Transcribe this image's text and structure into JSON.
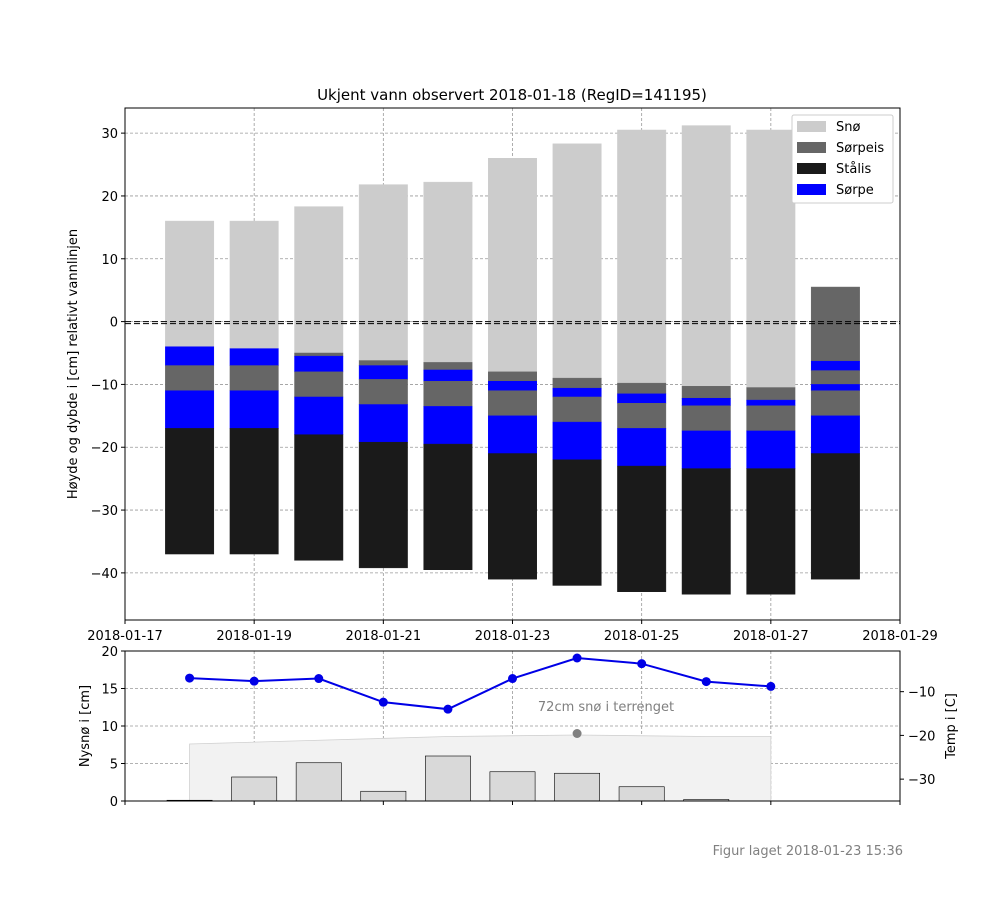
{
  "colors": {
    "sno": "#cccccc",
    "sorpeis": "#666666",
    "stalis": "#1a1a1a",
    "sorpe": "#0000ff",
    "temp_line": "#0000e6",
    "newsnow_bar": "#d9d9d9",
    "terrain_fill": "#f2f2f2",
    "grid": "#999999",
    "footer": "#808080"
  },
  "footer": "Figur laget 2018-01-23 15:36",
  "chart_data": [
    {
      "type": "bar",
      "stacked": true,
      "title": "Ukjent vann observert 2018-01-18 (RegID=141195)",
      "ylabel": "Høyde og dybde i [cm] relativt vannlinjen",
      "ylim": [
        -47.5,
        34
      ],
      "yticks": [
        30,
        20,
        10,
        0,
        -10,
        -20,
        -30,
        -40
      ],
      "xlim": [
        "2018-01-17",
        "2018-01-29"
      ],
      "xticks": [
        "2018-01-17",
        "2018-01-19",
        "2018-01-21",
        "2018-01-23",
        "2018-01-25",
        "2018-01-27",
        "2018-01-29"
      ],
      "grid": true,
      "legend_position": "top-right",
      "water_line": 0,
      "legend": [
        "Snø",
        "Sørpeis",
        "Stålis",
        "Sørpe"
      ],
      "columns": [
        {
          "date": "2018-01-18",
          "layers": [
            {
              "type": "sno",
              "top": 16,
              "bottom": -4
            },
            {
              "type": "sorpe",
              "top": -4,
              "bottom": -7
            },
            {
              "type": "sorpeis",
              "top": -7,
              "bottom": -11
            },
            {
              "type": "sorpe",
              "top": -11,
              "bottom": -17
            },
            {
              "type": "stalis",
              "top": -17,
              "bottom": -37
            }
          ]
        },
        {
          "date": "2018-01-19",
          "layers": [
            {
              "type": "sno",
              "top": 16,
              "bottom": -4.3
            },
            {
              "type": "sorpe",
              "top": -4.3,
              "bottom": -7
            },
            {
              "type": "sorpeis",
              "top": -7,
              "bottom": -11
            },
            {
              "type": "sorpe",
              "top": -11,
              "bottom": -17
            },
            {
              "type": "stalis",
              "top": -17,
              "bottom": -37
            }
          ]
        },
        {
          "date": "2018-01-20",
          "layers": [
            {
              "type": "sno",
              "top": 18.3,
              "bottom": -5
            },
            {
              "type": "sorpeis",
              "top": -5,
              "bottom": -5.5
            },
            {
              "type": "sorpe",
              "top": -5.5,
              "bottom": -8
            },
            {
              "type": "sorpeis",
              "top": -8,
              "bottom": -12
            },
            {
              "type": "sorpe",
              "top": -12,
              "bottom": -18
            },
            {
              "type": "stalis",
              "top": -18,
              "bottom": -38
            }
          ]
        },
        {
          "date": "2018-01-21",
          "layers": [
            {
              "type": "sno",
              "top": 21.8,
              "bottom": -6.2
            },
            {
              "type": "sorpeis",
              "top": -6.2,
              "bottom": -7
            },
            {
              "type": "sorpe",
              "top": -7,
              "bottom": -9.2
            },
            {
              "type": "sorpeis",
              "top": -9.2,
              "bottom": -13.2
            },
            {
              "type": "sorpe",
              "top": -13.2,
              "bottom": -19.2
            },
            {
              "type": "stalis",
              "top": -19.2,
              "bottom": -39.2
            }
          ]
        },
        {
          "date": "2018-01-22",
          "layers": [
            {
              "type": "sno",
              "top": 22.2,
              "bottom": -6.5
            },
            {
              "type": "sorpeis",
              "top": -6.5,
              "bottom": -7.7
            },
            {
              "type": "sorpe",
              "top": -7.7,
              "bottom": -9.5
            },
            {
              "type": "sorpeis",
              "top": -9.5,
              "bottom": -13.5
            },
            {
              "type": "sorpe",
              "top": -13.5,
              "bottom": -19.5
            },
            {
              "type": "stalis",
              "top": -19.5,
              "bottom": -39.5
            }
          ]
        },
        {
          "date": "2018-01-23",
          "layers": [
            {
              "type": "sno",
              "top": 26,
              "bottom": -8
            },
            {
              "type": "sorpeis",
              "top": -8,
              "bottom": -9.5
            },
            {
              "type": "sorpe",
              "top": -9.5,
              "bottom": -11
            },
            {
              "type": "sorpeis",
              "top": -11,
              "bottom": -15
            },
            {
              "type": "sorpe",
              "top": -15,
              "bottom": -21
            },
            {
              "type": "stalis",
              "top": -21,
              "bottom": -41
            }
          ]
        },
        {
          "date": "2018-01-24",
          "layers": [
            {
              "type": "sno",
              "top": 28.3,
              "bottom": -9
            },
            {
              "type": "sorpeis",
              "top": -9,
              "bottom": -10.6
            },
            {
              "type": "sorpe",
              "top": -10.6,
              "bottom": -12
            },
            {
              "type": "sorpeis",
              "top": -12,
              "bottom": -16
            },
            {
              "type": "sorpe",
              "top": -16,
              "bottom": -22
            },
            {
              "type": "stalis",
              "top": -22,
              "bottom": -42
            }
          ]
        },
        {
          "date": "2018-01-25",
          "layers": [
            {
              "type": "sno",
              "top": 30.5,
              "bottom": -9.8
            },
            {
              "type": "sorpeis",
              "top": -9.8,
              "bottom": -11.5
            },
            {
              "type": "sorpe",
              "top": -11.5,
              "bottom": -13
            },
            {
              "type": "sorpeis",
              "top": -13,
              "bottom": -17
            },
            {
              "type": "sorpe",
              "top": -17,
              "bottom": -23
            },
            {
              "type": "stalis",
              "top": -23,
              "bottom": -43
            }
          ]
        },
        {
          "date": "2018-01-26",
          "layers": [
            {
              "type": "sno",
              "top": 31.2,
              "bottom": -10.3
            },
            {
              "type": "sorpeis",
              "top": -10.3,
              "bottom": -12.2
            },
            {
              "type": "sorpe",
              "top": -12.2,
              "bottom": -13.4
            },
            {
              "type": "sorpeis",
              "top": -13.4,
              "bottom": -17.4
            },
            {
              "type": "sorpe",
              "top": -17.4,
              "bottom": -23.4
            },
            {
              "type": "stalis",
              "top": -23.4,
              "bottom": -43.4
            }
          ]
        },
        {
          "date": "2018-01-27",
          "layers": [
            {
              "type": "sno",
              "top": 30.5,
              "bottom": -10.5
            },
            {
              "type": "sorpeis",
              "top": -10.5,
              "bottom": -12.5
            },
            {
              "type": "sorpe",
              "top": -12.5,
              "bottom": -13.4
            },
            {
              "type": "sorpeis",
              "top": -13.4,
              "bottom": -17.4
            },
            {
              "type": "sorpe",
              "top": -17.4,
              "bottom": -23.4
            },
            {
              "type": "stalis",
              "top": -23.4,
              "bottom": -43.4
            }
          ]
        },
        {
          "date": "2018-01-28",
          "layers": [
            {
              "type": "sorpeis",
              "top": 5.5,
              "bottom": -6.3
            },
            {
              "type": "sorpe",
              "top": -6.3,
              "bottom": -7.8
            },
            {
              "type": "sorpeis",
              "top": -7.8,
              "bottom": -10
            },
            {
              "type": "sorpe",
              "top": -10,
              "bottom": -11
            },
            {
              "type": "sorpeis",
              "top": -11,
              "bottom": -15
            },
            {
              "type": "sorpe",
              "top": -15,
              "bottom": -21
            },
            {
              "type": "stalis",
              "top": -21,
              "bottom": -41
            }
          ]
        }
      ]
    },
    {
      "type": "bar",
      "ylabel": "Nysnø i [cm]",
      "y2label": "Temp i [C]",
      "ylim": [
        0,
        20
      ],
      "yticks": [
        0,
        5,
        10,
        15,
        20
      ],
      "y2lim": [
        -35,
        -0.7
      ],
      "y2ticks": [
        -10,
        -20,
        -30
      ],
      "grid": true,
      "annotation": "72cm snø i terrenget",
      "annotation_marker": {
        "date": "2018-01-24",
        "value": 9
      },
      "new_snow": [
        {
          "date": "2018-01-18",
          "value": 0.1
        },
        {
          "date": "2018-01-19",
          "value": 3.2
        },
        {
          "date": "2018-01-20",
          "value": 5.1
        },
        {
          "date": "2018-01-21",
          "value": 1.3
        },
        {
          "date": "2018-01-22",
          "value": 6
        },
        {
          "date": "2018-01-23",
          "value": 3.9
        },
        {
          "date": "2018-01-24",
          "value": 3.7
        },
        {
          "date": "2018-01-25",
          "value": 1.9
        },
        {
          "date": "2018-01-26",
          "value": 0.2
        }
      ],
      "terrain_snow_area": [
        {
          "date": "2018-01-18",
          "value": 7.6
        },
        {
          "date": "2018-01-20",
          "value": 8.1
        },
        {
          "date": "2018-01-22",
          "value": 8.6
        },
        {
          "date": "2018-01-24",
          "value": 8.8
        },
        {
          "date": "2018-01-26",
          "value": 8.6
        },
        {
          "date": "2018-01-27",
          "value": 8.6
        }
      ],
      "temperature": [
        {
          "date": "2018-01-18",
          "value": -6.9
        },
        {
          "date": "2018-01-19",
          "value": -7.6
        },
        {
          "date": "2018-01-20",
          "value": -7
        },
        {
          "date": "2018-01-21",
          "value": -12.4
        },
        {
          "date": "2018-01-22",
          "value": -14
        },
        {
          "date": "2018-01-23",
          "value": -7
        },
        {
          "date": "2018-01-24",
          "value": -2.3
        },
        {
          "date": "2018-01-25",
          "value": -3.6
        },
        {
          "date": "2018-01-26",
          "value": -7.7
        },
        {
          "date": "2018-01-27",
          "value": -8.8
        }
      ]
    }
  ]
}
